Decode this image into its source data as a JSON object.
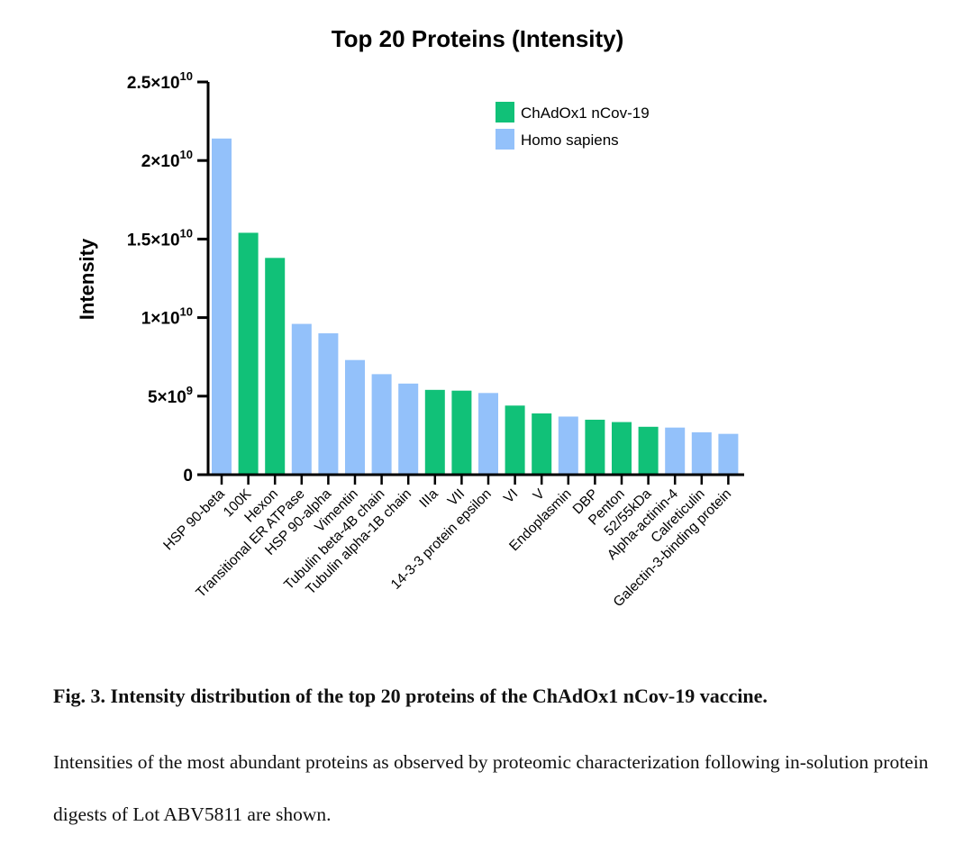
{
  "chart_data": {
    "type": "bar",
    "title": "Top 20 Proteins (Intensity)",
    "ylabel": "Intensity",
    "xlabel": "",
    "ylim": [
      0,
      25000000000
    ],
    "yticks": [
      {
        "value": 0,
        "base": "0",
        "exp": ""
      },
      {
        "value": 5000000000,
        "base": "5×10",
        "exp": "9"
      },
      {
        "value": 10000000000,
        "base": "1×10",
        "exp": "10"
      },
      {
        "value": 15000000000,
        "base": "1.5×10",
        "exp": "10"
      },
      {
        "value": 20000000000,
        "base": "2×10",
        "exp": "10"
      },
      {
        "value": 25000000000,
        "base": "2.5×10",
        "exp": "10"
      }
    ],
    "legend_position": "top-right",
    "series": [
      {
        "name": "ChAdOx1 nCov-19",
        "color": "#11c178"
      },
      {
        "name": "Homo sapiens",
        "color": "#93c1fa"
      }
    ],
    "categories": [
      "HSP 90-beta",
      "100K",
      "Hexon",
      "Transitional ER ATPase",
      "HSP 90-alpha",
      "Vimentin",
      "Tubulin beta-4B chain",
      "Tubulin alpha-1B chain",
      "IIIa",
      "VII",
      "14-3-3 protein epsilon",
      "VI",
      "V",
      "Endoplasmin",
      "DBP",
      "Penton",
      "52/55kDa",
      "Alpha-actinin-4",
      "Calreticulin",
      "Galectin-3-binding protein"
    ],
    "values": [
      21400000000,
      15400000000,
      13800000000,
      9600000000,
      9000000000,
      7300000000,
      6400000000,
      5800000000,
      5400000000,
      5350000000,
      5200000000,
      4400000000,
      3900000000,
      3700000000,
      3500000000,
      3350000000,
      3050000000,
      3000000000,
      2700000000,
      2600000000
    ],
    "series_index": [
      1,
      0,
      0,
      1,
      1,
      1,
      1,
      1,
      0,
      0,
      1,
      0,
      0,
      1,
      0,
      0,
      0,
      1,
      1,
      1
    ]
  },
  "caption": {
    "title": "Fig. 3. Intensity distribution of the top 20 proteins of the ChAdOx1 nCov-19 vaccine.",
    "body": "Intensities of the most abundant proteins as observed by proteomic characterization following in-solution protein digests of Lot ABV5811 are shown."
  }
}
